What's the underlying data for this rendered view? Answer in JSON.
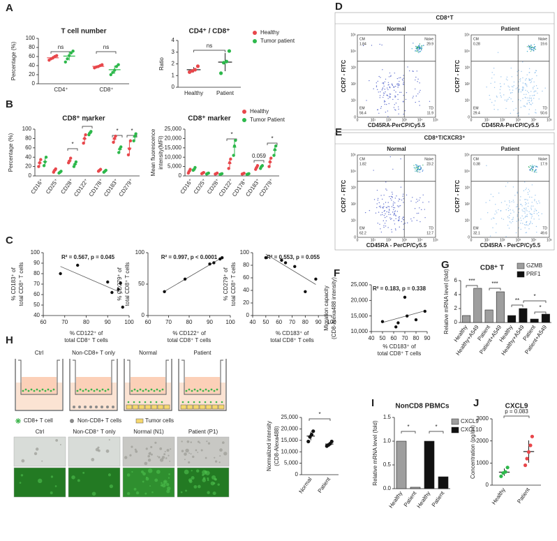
{
  "panel_letters": [
    "A",
    "B",
    "C",
    "D",
    "E",
    "F",
    "G",
    "H",
    "I",
    "J"
  ],
  "chart_data": [
    {
      "type": "dot",
      "title": "T cell number",
      "ylabel": "Percentage (%)",
      "categories": [
        "CD4⁺",
        "CD8⁺"
      ],
      "series": [
        {
          "name": "Healthy",
          "color": "#e8474b",
          "values": [
            [
              52,
              55,
              57,
              60,
              62
            ],
            [
              35,
              37,
              38,
              40,
              42
            ]
          ]
        },
        {
          "name": "Tumor patient",
          "color": "#2db84b",
          "values": [
            [
              48,
              55,
              62,
              68,
              72
            ],
            [
              20,
              25,
              30,
              38,
              42
            ]
          ]
        }
      ],
      "ylim": [
        0,
        100
      ],
      "yticks": [
        0,
        20,
        40,
        60,
        80,
        100
      ],
      "annotations": [
        "ns",
        "ns"
      ],
      "legend": true
    },
    {
      "type": "dot",
      "title": "CD4⁺ / CD8⁺",
      "ylabel": "Ratio",
      "categories": [
        "Healthy",
        "Patient"
      ],
      "values": [
        [
          1.3,
          1.4,
          1.5,
          1.8
        ],
        [
          1.2,
          2.1,
          2.2,
          3.1
        ]
      ],
      "colors": [
        "#e8474b",
        "#2db84b"
      ],
      "ylim": [
        0,
        4
      ],
      "yticks": [
        0,
        1,
        2,
        3,
        4
      ],
      "annotations": [
        "ns"
      ]
    },
    {
      "type": "dot",
      "title": "CD8⁺ marker",
      "ylabel": "Percentage (%)",
      "rotate_labels": true,
      "categories": [
        "CD16⁺",
        "CD25⁺",
        "CD28⁺",
        "CD122⁺",
        "CD178⁺",
        "CD183⁺",
        "CD279⁺"
      ],
      "series": [
        {
          "name": "Healthy",
          "color": "#e8474b",
          "values": [
            [
              20,
              28,
              35
            ],
            [
              8,
              12,
              15
            ],
            [
              28,
              32,
              38
            ],
            [
              70,
              80,
              88
            ],
            [
              10,
              12,
              14
            ],
            [
              72,
              80,
              85
            ],
            [
              45,
              58,
              75
            ]
          ]
        },
        {
          "name": "Tumor patient",
          "color": "#2db84b",
          "values": [
            [
              22,
              30,
              40
            ],
            [
              6,
              8,
              10
            ],
            [
              20,
              25,
              30
            ],
            [
              88,
              92,
              95
            ],
            [
              8,
              10,
              12
            ],
            [
              50,
              58,
              62
            ],
            [
              75,
              85,
              90
            ]
          ]
        }
      ],
      "ylim": [
        0,
        100
      ],
      "yticks": [
        0,
        20,
        40,
        60,
        80,
        100
      ],
      "annotations": [
        "*",
        "*",
        "*",
        "*"
      ]
    },
    {
      "type": "dot",
      "title": "CD8⁺ marker",
      "ylabel": [
        "Mean fluorescence",
        "intensity(MFI)"
      ],
      "rotate_labels": true,
      "categories": [
        "CD16⁺",
        "CD25⁺",
        "CD28⁺",
        "CD122⁺",
        "CD178⁺",
        "CD183⁺",
        "CD279⁺"
      ],
      "series": [
        {
          "name": "Healthy",
          "color": "#e8474b",
          "values": [
            [
              1500,
              2500,
              3500
            ],
            [
              1200,
              1500,
              1800
            ],
            [
              1000,
              1200,
              1500
            ],
            [
              4000,
              7000,
              9000
            ],
            [
              1000,
              1200,
              1400
            ],
            [
              3500,
              4500,
              5500
            ],
            [
              5000,
              7500,
              9500
            ]
          ]
        },
        {
          "name": "Tumor Patient",
          "color": "#2db84b",
          "values": [
            [
              3000,
              3500,
              4500
            ],
            [
              1000,
              1300,
              1500
            ],
            [
              800,
              1000,
              1200
            ],
            [
              11000,
              16000,
              19000
            ],
            [
              800,
              1000,
              1200
            ],
            [
              4000,
              5000,
              5500
            ],
            [
              11000,
              14000,
              16000
            ]
          ]
        }
      ],
      "ylim": [
        0,
        25000
      ],
      "yticks": [
        0,
        {
          "value": 5000,
          "label": "5,000"
        },
        {
          "value": 10000,
          "label": "10,000"
        },
        {
          "value": 15000,
          "label": "15,000"
        },
        {
          "value": 20000,
          "label": "20,000"
        },
        {
          "value": 25000,
          "label": "25,000"
        }
      ],
      "annotations": [
        "*",
        "0.059",
        "*"
      ],
      "legend": true
    },
    {
      "type": "scatter",
      "xlabel": [
        "% CD122⁺ of",
        "total CD8⁺ T cells"
      ],
      "ylabel": [
        "% CD183⁺ of",
        "total CD8⁺ T cells"
      ],
      "x": [
        68,
        76,
        90,
        92,
        95,
        96,
        97
      ],
      "y": [
        80,
        88,
        72,
        62,
        65,
        71,
        48
      ],
      "xlim": [
        60,
        100
      ],
      "xticks": [
        60,
        70,
        80,
        90,
        100
      ],
      "ylim": [
        40,
        100
      ],
      "yticks": [
        40,
        50,
        60,
        70,
        80,
        90,
        100
      ],
      "annotations": [
        "R² = 0.567, p = 0.045"
      ]
    },
    {
      "type": "scatter",
      "xlabel": [
        "% CD122⁺ of",
        "total CD8⁺ T cells"
      ],
      "ylabel": [
        "% CD279⁺ of",
        "total CD8⁺ T cells"
      ],
      "x": [
        68,
        78,
        90,
        92,
        95,
        96
      ],
      "y": [
        38,
        58,
        82,
        84,
        90,
        92
      ],
      "xlim": [
        60,
        100
      ],
      "xticks": [
        60,
        70,
        80,
        90,
        100
      ],
      "ylim": [
        0,
        100
      ],
      "yticks": [
        0,
        50,
        100
      ],
      "annotations": [
        "R² = 0.997, p < 0.0001"
      ]
    },
    {
      "type": "scatter",
      "xlabel": [
        "% CD183⁺ of",
        "total CD8⁺ T cells"
      ],
      "ylabel": [
        "% CD279⁺ of",
        "total CD8⁺ T cells"
      ],
      "x": [
        50,
        62,
        65,
        72,
        80,
        88
      ],
      "y": [
        92,
        88,
        84,
        78,
        38,
        58
      ],
      "xlim": [
        40,
        100
      ],
      "xticks": [
        40,
        50,
        60,
        70,
        80,
        90,
        100
      ],
      "ylim": [
        0,
        100
      ],
      "yticks": [
        0,
        20,
        40,
        60,
        80,
        100
      ],
      "annotations": [
        "R² = 0.553, p = 0.055"
      ]
    },
    {
      "type": "scatter",
      "xlabel": [
        "% CD183⁺ of",
        "total CD8⁺ T cells"
      ],
      "ylabel": [
        "Migration capacity",
        "(CD8-Alexa488 intensity)"
      ],
      "x": [
        50,
        62,
        64,
        70,
        72,
        80,
        88
      ],
      "y": [
        13200,
        11500,
        12800,
        21000,
        15000,
        13800,
        16500
      ],
      "xlim": [
        40,
        90
      ],
      "xticks": [
        40,
        50,
        60,
        70,
        80,
        90
      ],
      "ylim": [
        10000,
        25000
      ],
      "yticks": [
        {
          "value": 10000,
          "label": "10,000"
        },
        {
          "value": 15000,
          "label": "15,000"
        },
        {
          "value": 20000,
          "label": "20,000"
        },
        {
          "value": 25000,
          "label": "25,000"
        }
      ],
      "annotations": [
        "R² = 0.183, p = 0.338"
      ]
    },
    {
      "type": "bar",
      "title": "CD8⁺ T",
      "ylabel": "Relative mRNA level (fold)",
      "rotate_labels": true,
      "categories": [
        "Healthy",
        "Healthy+A549",
        "Patient",
        "Patient+A549"
      ],
      "series": [
        {
          "name": "GZMB",
          "color": "#9e9e9e",
          "values": [
            1.0,
            4.9,
            1.8,
            4.4
          ]
        },
        {
          "name": "PRF1",
          "color": "#111111",
          "values": [
            1.0,
            2.0,
            0.5,
            1.2
          ]
        }
      ],
      "ylim": [
        0,
        6
      ],
      "yticks": [
        0,
        2,
        4,
        6
      ],
      "annotations": [
        "***",
        "***",
        "**",
        "*",
        "*"
      ],
      "legend": true
    },
    {
      "type": "dot",
      "ylabel": [
        "Normalized intensity",
        "(CD8-Alexa488)"
      ],
      "rotate_labels": true,
      "categories": [
        "Normal",
        "Patient"
      ],
      "values": [
        [
          14500,
          16500,
          17500,
          19000
        ],
        [
          12500,
          13000,
          13500,
          14500
        ]
      ],
      "colors": [
        "#111111",
        "#111111"
      ],
      "ylim": [
        0,
        25000
      ],
      "yticks": [
        0,
        {
          "value": 5000,
          "label": "5,000"
        },
        {
          "value": 10000,
          "label": "10,000"
        },
        {
          "value": 15000,
          "label": "15,000"
        },
        {
          "value": 20000,
          "label": "20,000"
        },
        {
          "value": 25000,
          "label": "25,000"
        }
      ],
      "annotations": [
        "*"
      ]
    },
    {
      "type": "bar",
      "title": "NonCD8 PBMCs",
      "ylabel": "Relative mRNA level (fold)",
      "rotate_labels": true,
      "categories": [
        "Healthy",
        "Patient"
      ],
      "series": [
        {
          "name": "CXCL9",
          "color": "#9e9e9e",
          "values": [
            1.0,
            0.03
          ]
        },
        {
          "name": "CXCL10",
          "color": "#111111",
          "values": [
            1.0,
            0.25
          ]
        }
      ],
      "ylim": [
        0,
        1.5
      ],
      "yticks": [
        {
          "value": 0,
          "label": "0.0"
        },
        0.5,
        {
          "value": 1,
          "label": "1.0"
        },
        1.5
      ],
      "annotations": [
        "*",
        "*"
      ],
      "legend": true
    },
    {
      "type": "dot",
      "title": "CXCL9",
      "ylabel": "Concentration (pg/ml)",
      "rotate_labels": true,
      "categories": [
        "Healthy",
        "Patient"
      ],
      "values": [
        [
          400,
          550,
          600,
          800
        ],
        [
          900,
          1200,
          1500,
          1800,
          2200
        ]
      ],
      "colors": [
        "#2db84b",
        "#e8474b"
      ],
      "ylim": [
        0,
        3000
      ],
      "yticks": [
        0,
        1000,
        2000,
        3000
      ],
      "annotations": [
        "p = 0.083"
      ]
    }
  ],
  "flow_ticks": [
    "0",
    "10¹",
    "10²",
    "10³",
    "10⁴",
    "10⁵"
  ],
  "flow": [
    {
      "title": "CD8⁺T",
      "y_label": "CCR7 - FITC",
      "x_label": "CD45RA-PerCP/Cy5.5",
      "plots": [
        {
          "name": "Normal",
          "quadrants": [
            {
              "label": "CM",
              "value": 1.84
            },
            {
              "label": "Naive",
              "value": 29.9
            },
            {
              "label": "EM",
              "value": 56.4
            },
            {
              "label": "TD",
              "value": 11.9
            }
          ]
        },
        {
          "name": "Patient",
          "quadrants": [
            {
              "label": "CM",
              "value": 0.28
            },
            {
              "label": "Naive",
              "value": 19.6
            },
            {
              "label": "EM",
              "value": 29.4
            },
            {
              "label": "TD",
              "value": 50.6
            }
          ]
        }
      ]
    },
    {
      "title": "CD8⁺T/CXCR3⁺",
      "y_label": "CCR7 - FITC",
      "x_label": "CD45RA - PerCP/Cy5.5",
      "plots": [
        {
          "name": "Normal",
          "quadrants": [
            {
              "label": "CM",
              "value": 1.82
            },
            {
              "label": "Naive",
              "value": 23.2
            },
            {
              "label": "EM",
              "value": 62.2
            },
            {
              "label": "TD",
              "value": 12.7
            }
          ]
        },
        {
          "name": "Patient",
          "quadrants": [
            {
              "label": "CM",
              "value": 0.38
            },
            {
              "label": "Naive",
              "value": 17.9
            },
            {
              "label": "EM",
              "value": 32.1
            },
            {
              "label": "TD",
              "value": 49.6
            }
          ]
        }
      ]
    }
  ],
  "schematic": {
    "wells": [
      "Ctrl",
      "Non-CD8+ T only",
      "Normal",
      "Patient"
    ],
    "legend": [
      "CD8+ T cell",
      "Non-CD8+ T cells",
      "Tumor cells"
    ],
    "images": [
      "Ctrl",
      "Non-CD8⁺ T only",
      "Normal (N1)",
      "Patient (P1)"
    ]
  }
}
